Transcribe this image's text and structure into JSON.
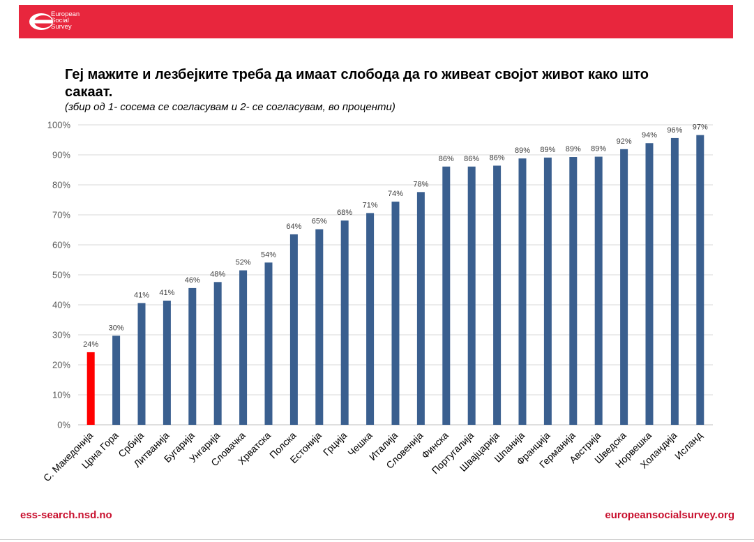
{
  "header": {
    "logo_lines": [
      "European",
      "Social",
      "Survey"
    ],
    "banner_color": "#e8263d"
  },
  "chart_data": {
    "type": "bar",
    "title": "Геј мажите и лезбејките треба да имаат слобода да го живеат својот живот како што сакаат.",
    "subtitle": "(збир од 1- сосема се согласувам и 2- се согласувам, во проценти)",
    "categories": [
      "С. Македонија",
      "Црна Гора",
      "Србија",
      "Литванија",
      "Бугарија",
      "Унгарија",
      "Словачка",
      "Хрватска",
      "Полска",
      "Естонија",
      "Грција",
      "Чешка",
      "Италија",
      "Словенија",
      "Финска",
      "Португалија",
      "Швајцарија",
      "Шпанија",
      "Франција",
      "Германија",
      "Австрија",
      "Шведска",
      "Норвешка",
      "Холандија",
      "Исланд"
    ],
    "values": [
      24.2,
      29.7,
      40.6,
      41.4,
      45.6,
      47.6,
      51.5,
      54.1,
      63.5,
      65.2,
      68.1,
      70.6,
      74.4,
      77.6,
      86.1,
      86.1,
      86.4,
      88.8,
      89.1,
      89.3,
      89.4,
      91.9,
      93.9,
      95.6,
      96.6
    ],
    "data_labels": [
      "24%",
      "30%",
      "41%",
      "41%",
      "46%",
      "48%",
      "52%",
      "54%",
      "64%",
      "65%",
      "68%",
      "71%",
      "74%",
      "78%",
      "86%",
      "86%",
      "86%",
      "89%",
      "89%",
      "89%",
      "89%",
      "92%",
      "94%",
      "96%",
      "97%"
    ],
    "yticks": [
      "0%",
      "10%",
      "20%",
      "30%",
      "40%",
      "50%",
      "60%",
      "70%",
      "80%",
      "90%",
      "100%"
    ],
    "ylim": [
      0,
      100
    ],
    "grid": true,
    "bar_color": "#3a5f8f",
    "highlight_color": "#ff0000",
    "highlight_index": 0
  },
  "footer": {
    "left": "ess-search.nsd.no",
    "right": "europeansocialsurvey.org",
    "color": "#c8102e"
  }
}
